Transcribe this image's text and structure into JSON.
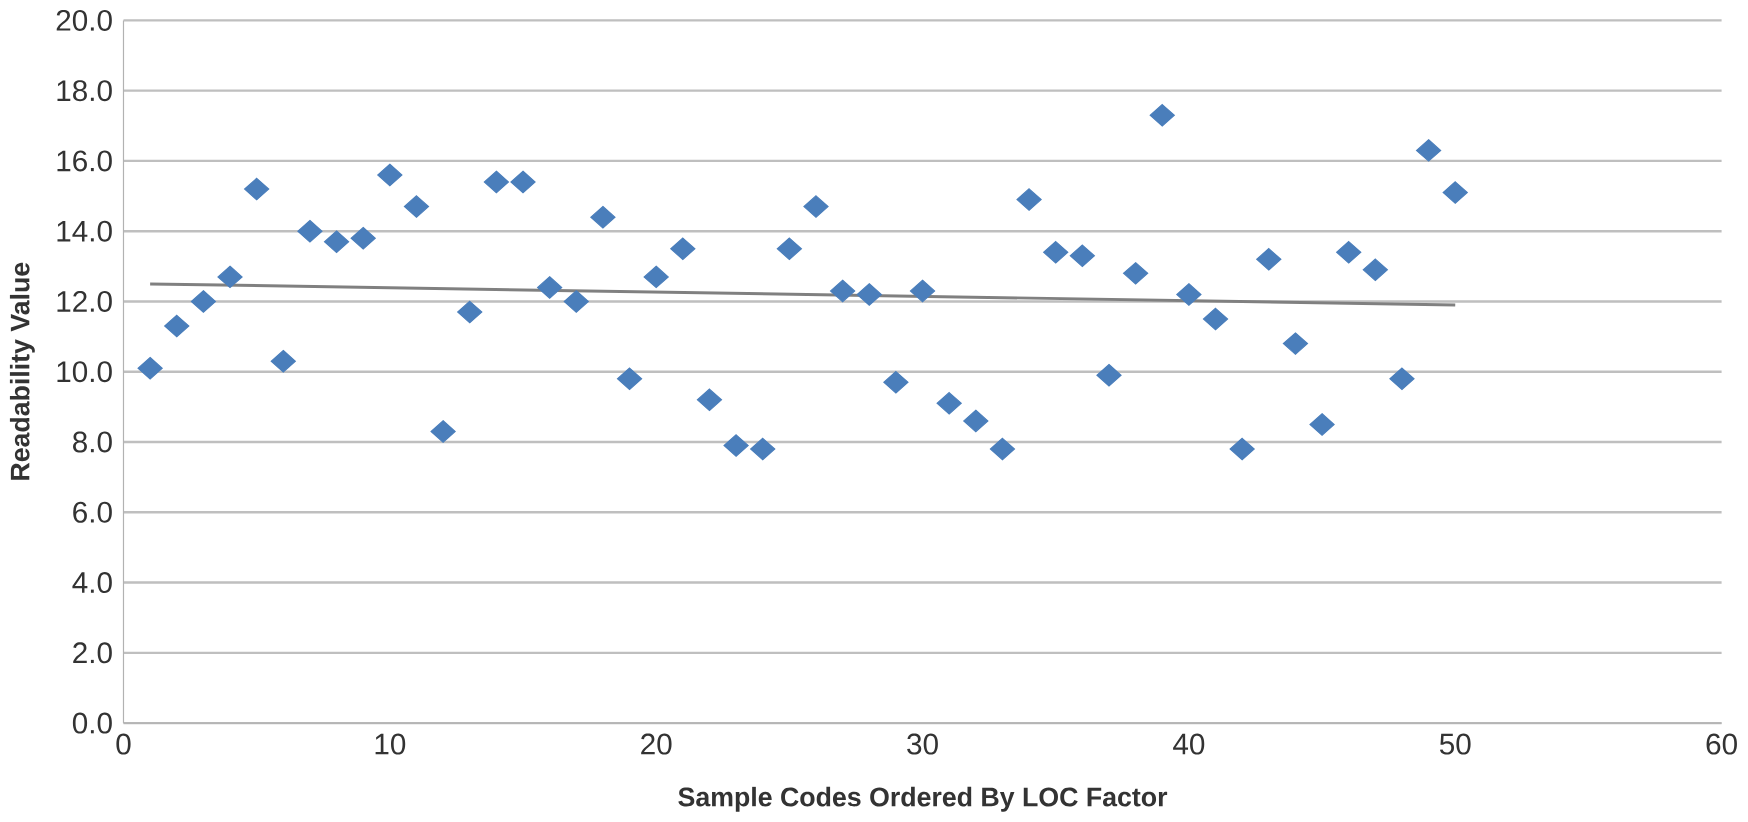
{
  "chart_data": {
    "type": "scatter",
    "xlabel": "Sample Codes Ordered By LOC Factor",
    "ylabel": "Readability Value",
    "xlim": [
      0,
      60
    ],
    "xticks": [
      0,
      10,
      20,
      30,
      40,
      50,
      60
    ],
    "ylim": [
      0,
      20
    ],
    "yticks": [
      {
        "value": 0,
        "label": "0.0"
      },
      {
        "value": 2,
        "label": "2.0"
      },
      {
        "value": 4,
        "label": "4.0"
      },
      {
        "value": 6,
        "label": "6.0"
      },
      {
        "value": 8,
        "label": "8.0"
      },
      {
        "value": 10,
        "label": "10.0"
      },
      {
        "value": 12,
        "label": "12.0"
      },
      {
        "value": 14,
        "label": "14.0"
      },
      {
        "value": 16,
        "label": "16.0"
      },
      {
        "value": 18,
        "label": "18.0"
      },
      {
        "value": 20,
        "label": "20.0"
      }
    ],
    "grid": "y",
    "series": [
      {
        "color": "#4a7ebb",
        "marker": "diamond",
        "x": [
          1,
          2,
          3,
          4,
          5,
          6,
          7,
          8,
          9,
          10,
          11,
          12,
          13,
          14,
          15,
          16,
          17,
          18,
          19,
          20,
          21,
          22,
          23,
          24,
          25,
          26,
          27,
          28,
          29,
          30,
          31,
          32,
          33,
          34,
          35,
          36,
          37,
          38,
          39,
          40,
          41,
          42,
          43,
          44,
          45,
          46,
          47,
          48,
          49,
          50
        ],
        "values": [
          10.1,
          11.3,
          12.0,
          12.7,
          15.2,
          10.3,
          14.0,
          13.7,
          13.8,
          15.6,
          14.7,
          8.3,
          11.7,
          15.4,
          15.4,
          12.4,
          12.0,
          14.4,
          9.8,
          12.7,
          13.5,
          9.2,
          7.9,
          7.8,
          13.5,
          14.7,
          12.3,
          12.2,
          9.7,
          12.3,
          9.1,
          8.6,
          7.8,
          14.9,
          13.4,
          13.3,
          9.9,
          12.8,
          17.3,
          12.2,
          11.5,
          7.8,
          13.2,
          10.8,
          8.5,
          13.4,
          12.9,
          9.8,
          16.3,
          15.1
        ]
      },
      {
        "type": "line",
        "color": "#808080",
        "marker": "none",
        "x": [
          1,
          50
        ],
        "values": [
          12.5,
          11.9
        ]
      }
    ]
  }
}
